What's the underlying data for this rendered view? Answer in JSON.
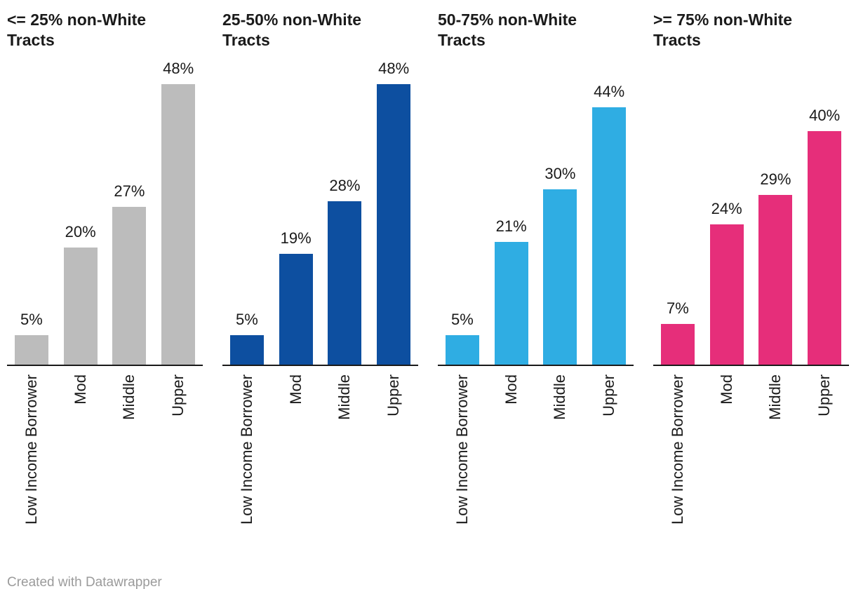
{
  "chart_data": [
    {
      "type": "bar",
      "title": "<= 25% non-White Tracts",
      "categories": [
        "Low Income Borrower",
        "Mod",
        "Middle",
        "Upper"
      ],
      "values": [
        5,
        20,
        27,
        48
      ],
      "value_labels": [
        "5%",
        "20%",
        "27%",
        "48%"
      ],
      "bar_color": "#bcbcbc",
      "ylim": [
        0,
        48
      ],
      "grid": false,
      "legend": "none"
    },
    {
      "type": "bar",
      "title": "25-50% non-White Tracts",
      "categories": [
        "Low Income Borrower",
        "Mod",
        "Middle",
        "Upper"
      ],
      "values": [
        5,
        19,
        28,
        48
      ],
      "value_labels": [
        "5%",
        "19%",
        "28%",
        "48%"
      ],
      "bar_color": "#0d4fa0",
      "ylim": [
        0,
        48
      ],
      "grid": false,
      "legend": "none"
    },
    {
      "type": "bar",
      "title": "50-75% non-White Tracts",
      "categories": [
        "Low Income Borrower",
        "Mod",
        "Middle",
        "Upper"
      ],
      "values": [
        5,
        21,
        30,
        44
      ],
      "value_labels": [
        "5%",
        "21%",
        "30%",
        "44%"
      ],
      "bar_color": "#2fade3",
      "ylim": [
        0,
        48
      ],
      "grid": false,
      "legend": "none"
    },
    {
      "type": "bar",
      "title": ">= 75% non-White Tracts",
      "categories": [
        "Low Income Borrower",
        "Mod",
        "Middle",
        "Upper"
      ],
      "values": [
        7,
        24,
        29,
        40
      ],
      "value_labels": [
        "7%",
        "24%",
        "29%",
        "40%"
      ],
      "bar_color": "#e62e7a",
      "ylim": [
        0,
        48
      ],
      "grid": false,
      "legend": "none"
    }
  ],
  "footer": {
    "credit": "Created with Datawrapper"
  },
  "colors": {
    "axis_line": "#1a1a1a",
    "text": "#1a1a1a",
    "credit_text": "#9b9b9b",
    "background": "#ffffff"
  }
}
